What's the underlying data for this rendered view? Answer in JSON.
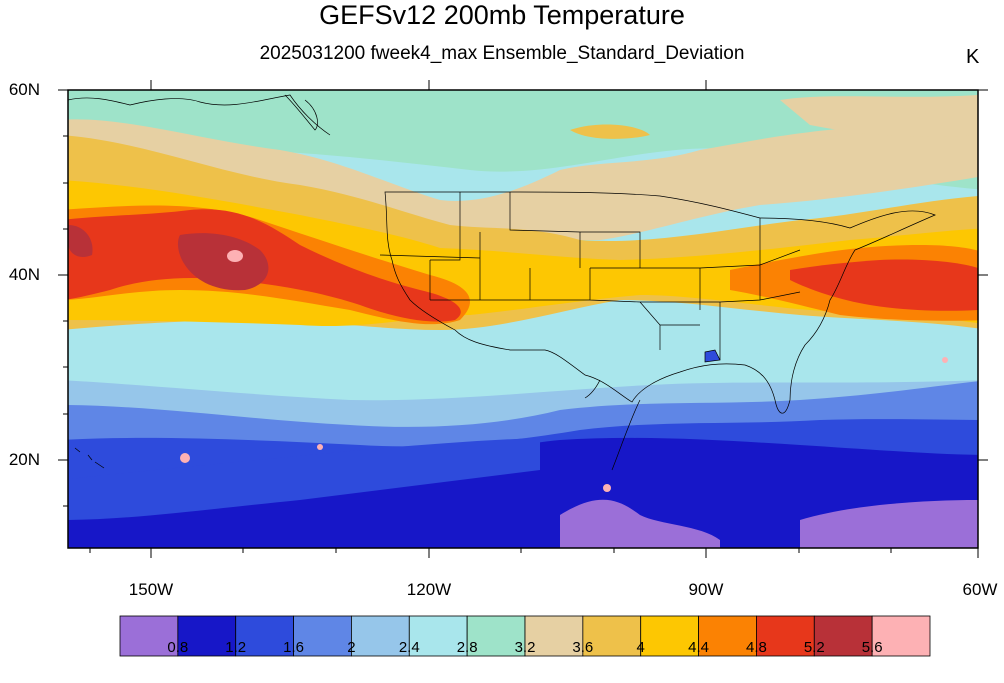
{
  "title": "GEFSv12 200mb Temperature",
  "subtitle": "2025031200 fweek4_max Ensemble_Standard_Deviation",
  "units": "K",
  "axes": {
    "lat_labels": [
      "60N",
      "40N",
      "20N"
    ],
    "lon_labels": [
      "150W",
      "120W",
      "90W",
      "60W"
    ]
  },
  "colorbar": {
    "labels": [
      "0.8",
      "1.2",
      "1.6",
      "2",
      "2.4",
      "2.8",
      "3.2",
      "3.6",
      "4",
      "4.4",
      "4.8",
      "5.2",
      "5.6"
    ],
    "colors": [
      "#9b6fd8",
      "#1717c8",
      "#2e4bdc",
      "#5f86e6",
      "#96c6ea",
      "#a9e6ec",
      "#9ee3c9",
      "#e6d0a3",
      "#eec14a",
      "#fdc702",
      "#fb8203",
      "#e7371b",
      "#b83138",
      "#fdb1b4"
    ]
  },
  "map": {
    "lat_range": [
      10,
      60
    ],
    "lon_range": [
      -160,
      -60
    ],
    "projection": "cylindrical"
  }
}
